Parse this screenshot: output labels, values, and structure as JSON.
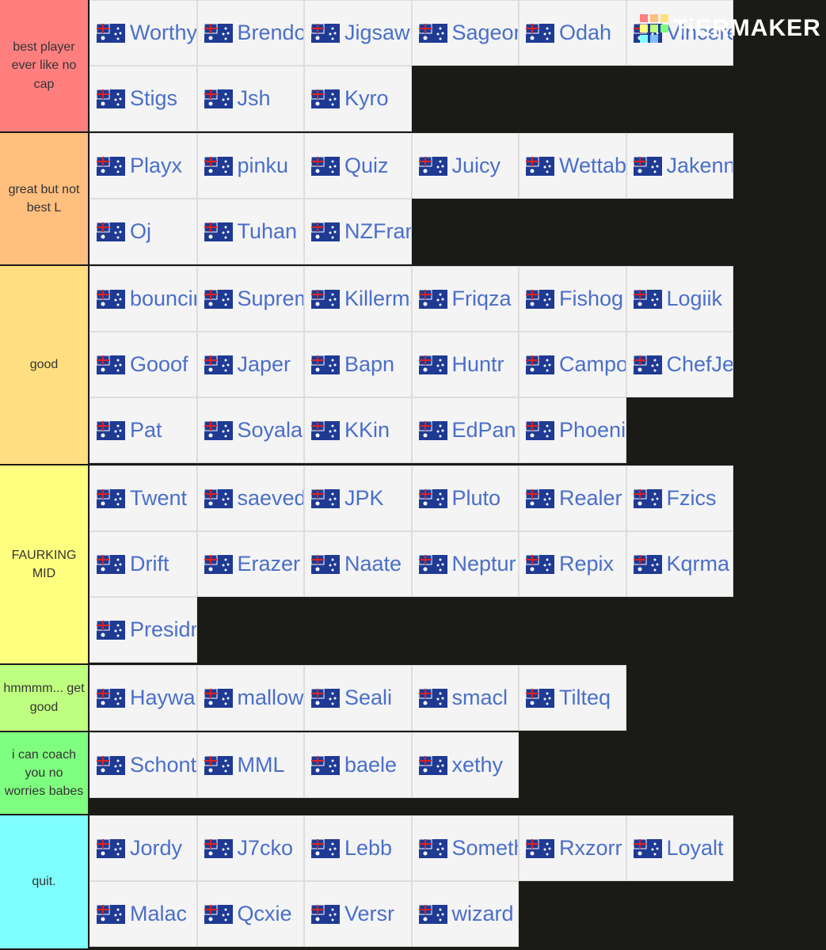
{
  "logo": "TiERMAKER",
  "tiers": [
    {
      "label": "best player ever like no cap",
      "color": "#ff7f7f",
      "items": [
        "Worthy",
        "Brendo",
        "Jigsaw",
        "Sageon",
        "Odah",
        "Vincere",
        "Stigs",
        "Jsh",
        "Kyro"
      ]
    },
    {
      "label": "great but not best L",
      "color": "#ffbf7f",
      "items": [
        "Playx",
        "pinku",
        "Quiz",
        "Juicy",
        "Wettable",
        "Jakenna",
        "Oj",
        "Tuhan",
        "NZFrankie"
      ]
    },
    {
      "label": "good",
      "color": "#ffdf7f",
      "items": [
        "bouncinb",
        "Supremis",
        "Killerma",
        "Friqza",
        "Fishog",
        "Logiik",
        "Gooof",
        "Japer",
        "Bapn",
        "Huntr",
        "Campo",
        "ChefJeff",
        "Pat",
        "Soyalan",
        "KKin",
        "EdPan",
        "Phoenix"
      ]
    },
    {
      "label": "FAURKING MID",
      "color": "#ffff7f",
      "items": [
        "Twent",
        "saeved",
        "JPK",
        "Pluto",
        "Realer",
        "Fzics",
        "Drift",
        "Erazer",
        "Naate",
        "Neptur",
        "Repix",
        "Kqrma",
        "Presidn"
      ]
    },
    {
      "label": "hmmmm... get good",
      "color": "#bfff7f",
      "items": [
        "Haywar",
        "mallow",
        "Seali",
        "smacl",
        "Tilteq"
      ]
    },
    {
      "label": "i can coach you no worries babes",
      "color": "#7fff7f",
      "items": [
        "Schont",
        "MML",
        "baele",
        "xethy"
      ]
    },
    {
      "label": "quit.",
      "color": "#7fffff",
      "items": [
        "Jordy",
        "J7cko",
        "Lebb",
        "Somethi",
        "Rxzorr",
        "Loyalt",
        "Malac",
        "Qcxie",
        "Versr",
        "wizard"
      ]
    }
  ]
}
